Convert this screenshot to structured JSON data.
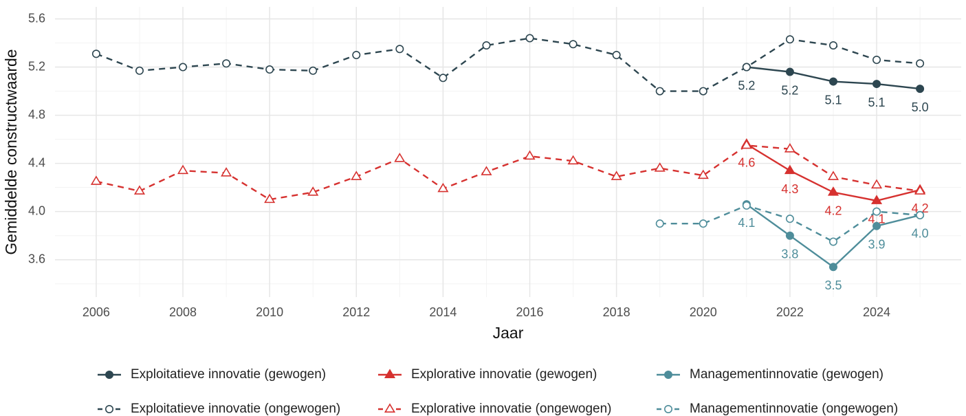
{
  "chart_data": {
    "type": "line",
    "x_label": "Jaar",
    "y_label": "Gemiddelde constructwaarde",
    "x": [
      2006,
      2007,
      2008,
      2009,
      2010,
      2011,
      2012,
      2013,
      2014,
      2015,
      2016,
      2017,
      2018,
      2019,
      2020,
      2021,
      2022,
      2023,
      2024,
      2025
    ],
    "xlim": [
      2005.05,
      2025.95
    ],
    "xticks": [
      2006,
      2008,
      2010,
      2012,
      2014,
      2016,
      2018,
      2020,
      2022,
      2024
    ],
    "xminor": [
      2007,
      2009,
      2011,
      2013,
      2015,
      2017,
      2019,
      2021,
      2023,
      2025
    ],
    "ylim": [
      3.29,
      5.7
    ],
    "yticks": [
      3.6,
      {
        "value": 4,
        "label": "4.0"
      },
      4.4,
      4.8,
      5.2,
      5.6
    ],
    "yminor": [
      3.4,
      3.8,
      4.2,
      4.6,
      5,
      5.4
    ],
    "grid": true,
    "legend": "bottom",
    "series": [
      {
        "name": "Exploitatieve innovatie (gewogen)",
        "color": "#2d4650",
        "marker": "circle",
        "filled": true,
        "dashed": false,
        "values": [
          null,
          null,
          null,
          null,
          null,
          null,
          null,
          null,
          null,
          null,
          null,
          null,
          null,
          null,
          null,
          5.2,
          5.16,
          5.08,
          5.06,
          5.02
        ],
        "value_labels": [
          null,
          null,
          null,
          null,
          null,
          null,
          null,
          null,
          null,
          null,
          null,
          null,
          null,
          null,
          null,
          "5.2",
          "5.2",
          "5.1",
          "5.1",
          "5.0"
        ]
      },
      {
        "name": "Exploitatieve innovatie (ongewogen)",
        "color": "#2d4650",
        "marker": "circle",
        "filled": false,
        "dashed": true,
        "values": [
          5.31,
          5.17,
          5.2,
          5.23,
          5.18,
          5.17,
          5.3,
          5.35,
          5.11,
          5.38,
          5.44,
          5.39,
          5.3,
          5.0,
          5.0,
          5.2,
          5.43,
          5.38,
          5.26,
          5.23
        ]
      },
      {
        "name": "Explorative innovatie (gewogen)",
        "color": "#d6312f",
        "marker": "triangle",
        "filled": true,
        "dashed": false,
        "values": [
          null,
          null,
          null,
          null,
          null,
          null,
          null,
          null,
          null,
          null,
          null,
          null,
          null,
          null,
          null,
          4.56,
          4.34,
          4.16,
          4.09,
          4.18
        ],
        "value_labels": [
          null,
          null,
          null,
          null,
          null,
          null,
          null,
          null,
          null,
          null,
          null,
          null,
          null,
          null,
          null,
          "4.6",
          "4.3",
          "4.2",
          "4.1",
          "4.2"
        ]
      },
      {
        "name": "Explorative innovatie (ongewogen)",
        "color": "#d6312f",
        "marker": "triangle",
        "filled": false,
        "dashed": true,
        "values": [
          4.25,
          4.17,
          4.34,
          4.32,
          4.1,
          4.16,
          4.29,
          4.44,
          4.19,
          4.33,
          4.46,
          4.42,
          4.29,
          4.36,
          4.3,
          4.55,
          4.52,
          4.29,
          4.22,
          4.17
        ]
      },
      {
        "name": "Managementinnovatie (gewogen)",
        "color": "#4e8d9a",
        "marker": "circle",
        "filled": true,
        "dashed": false,
        "values": [
          null,
          null,
          null,
          null,
          null,
          null,
          null,
          null,
          null,
          null,
          null,
          null,
          null,
          null,
          null,
          4.06,
          3.8,
          3.54,
          3.88,
          3.97
        ],
        "value_labels": [
          null,
          null,
          null,
          null,
          null,
          null,
          null,
          null,
          null,
          null,
          null,
          null,
          null,
          null,
          null,
          "4.1",
          "3.8",
          "3.5",
          "3.9",
          "4.0"
        ]
      },
      {
        "name": "Managementinnovatie (ongewogen)",
        "color": "#4e8d9a",
        "marker": "circle",
        "filled": false,
        "dashed": true,
        "values": [
          null,
          null,
          null,
          null,
          null,
          null,
          null,
          null,
          null,
          null,
          null,
          null,
          null,
          3.9,
          3.9,
          4.05,
          3.94,
          3.75,
          4.0,
          3.97
        ]
      }
    ]
  }
}
